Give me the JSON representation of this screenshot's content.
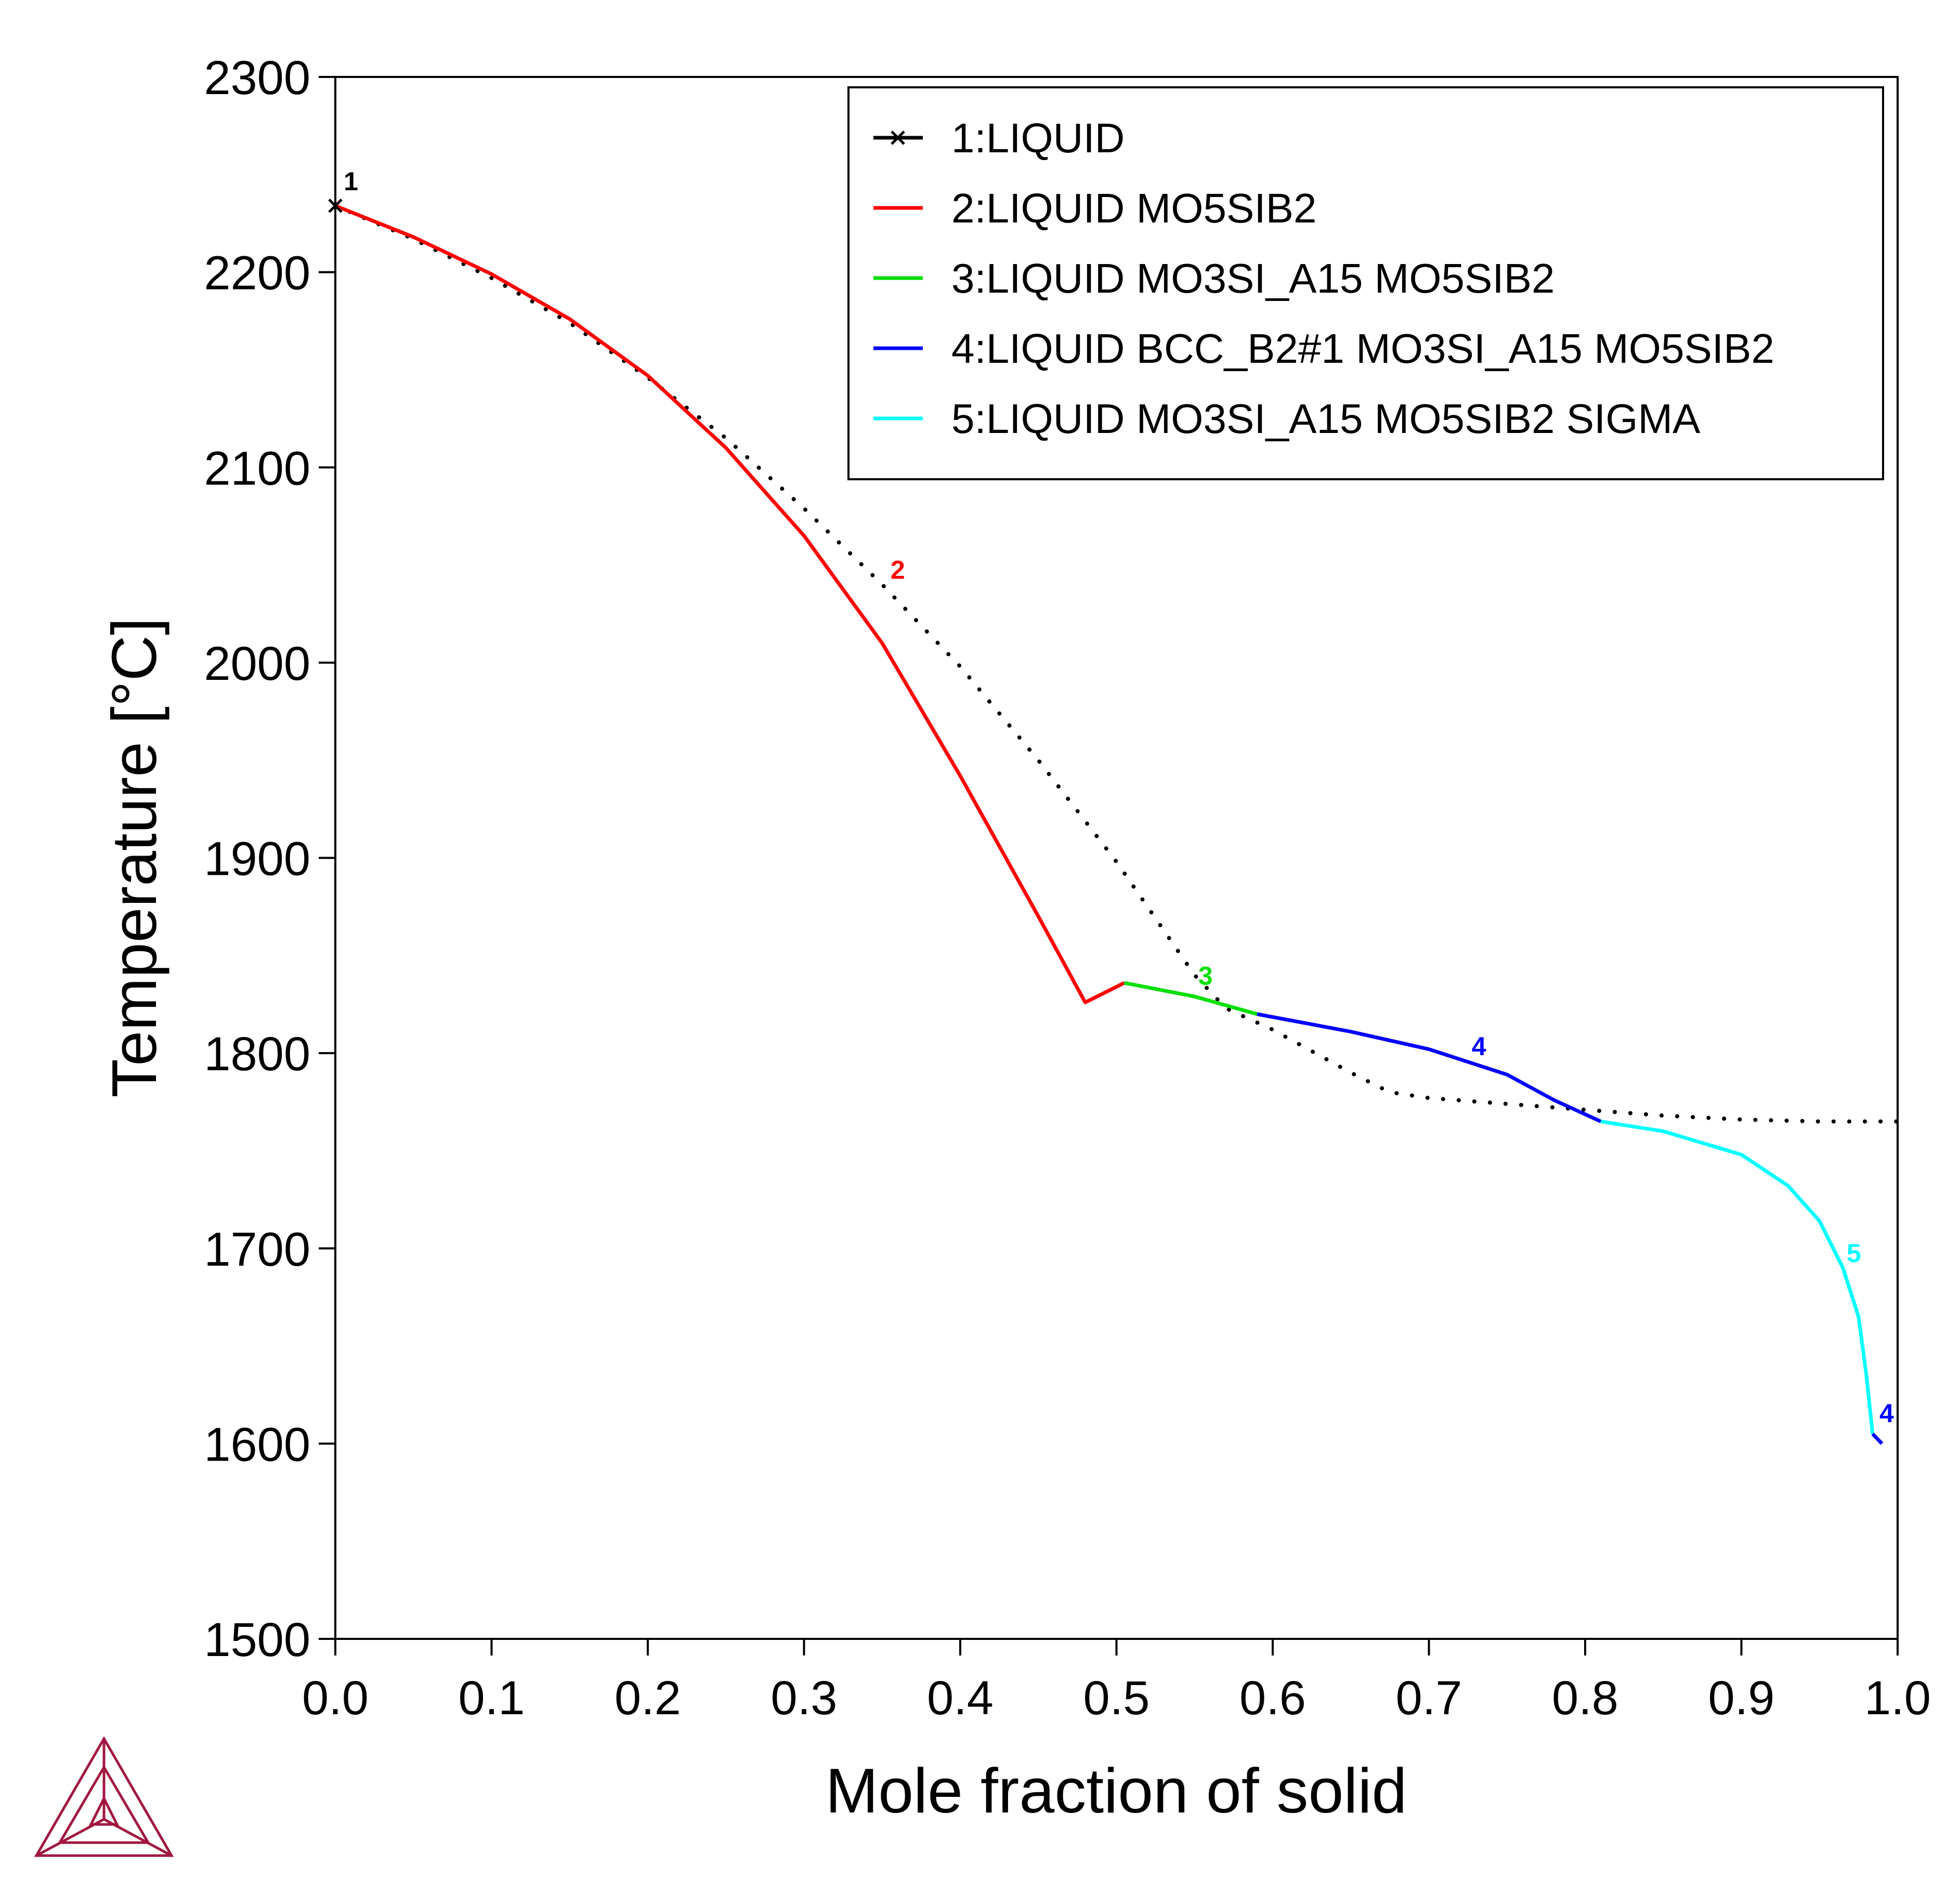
{
  "chart_data": {
    "type": "line",
    "xlabel": "Mole fraction of solid",
    "ylabel": "Temperature [°C]",
    "xlim": [
      0.0,
      1.0
    ],
    "ylim": [
      1500,
      2300
    ],
    "x_ticks": [
      "0.0",
      "0.1",
      "0.2",
      "0.3",
      "0.4",
      "0.5",
      "0.6",
      "0.7",
      "0.8",
      "0.9",
      "1.0"
    ],
    "y_ticks": [
      "1500",
      "1600",
      "1700",
      "1800",
      "1900",
      "2000",
      "2100",
      "2200",
      "2300"
    ],
    "grid": false,
    "legend_position": "top-right",
    "series": [
      {
        "name": "1:LIQUID",
        "color": "#000000",
        "style": "dotted",
        "marker": "x",
        "label": "1",
        "x": [
          0.0,
          0.05,
          0.1,
          0.15,
          0.2,
          0.25,
          0.3,
          0.35,
          0.4,
          0.45,
          0.5,
          0.55,
          0.57,
          0.6,
          0.65,
          0.675,
          0.7,
          0.75,
          0.8,
          0.85,
          0.9,
          0.95,
          1.0
        ],
        "y": [
          2234,
          2217,
          2197,
          2174,
          2146,
          2115,
          2079,
          2040,
          1998,
          1950,
          1898,
          1840,
          1823,
          1812,
          1790,
          1780,
          1777,
          1774,
          1771,
          1768,
          1766,
          1765,
          1765
        ]
      },
      {
        "name": "2:LIQUID MO5SIB2",
        "color": "#ff0000",
        "style": "solid",
        "label": "2",
        "x": [
          0.0,
          0.05,
          0.1,
          0.15,
          0.2,
          0.25,
          0.3,
          0.35,
          0.4,
          0.45,
          0.48,
          0.505
        ],
        "y": [
          2234,
          2218,
          2199,
          2176,
          2147,
          2110,
          2065,
          2010,
          1942,
          1870,
          1826,
          1836
        ]
      },
      {
        "name": "3:LIQUID MO3SI_A15 MO5SIB2",
        "color": "#00e000",
        "style": "solid",
        "label": "3",
        "x": [
          0.505,
          0.55,
          0.59
        ],
        "y": [
          1836,
          1829,
          1820
        ]
      },
      {
        "name": "4:LIQUID BCC_B2#1 MO3SI_A15 MO5SIB2",
        "color": "#0000ff",
        "style": "solid",
        "label": "4",
        "x": [
          0.59,
          0.65,
          0.7,
          0.75,
          0.78,
          0.81
        ],
        "y": [
          1820,
          1811,
          1802,
          1789,
          1776,
          1765
        ]
      },
      {
        "name": "5:LIQUID MO3SI_A15 MO5SIB2 SIGMA",
        "color": "#00ffff",
        "style": "solid",
        "label": "5",
        "x": [
          0.81,
          0.85,
          0.9,
          0.93,
          0.95,
          0.965,
          0.975,
          0.98,
          0.984
        ],
        "y": [
          1765,
          1760,
          1748,
          1732,
          1714,
          1690,
          1665,
          1635,
          1605
        ]
      },
      {
        "name": "",
        "color": "#0000ff",
        "style": "solid",
        "label": "4",
        "x": [
          0.984,
          0.99
        ],
        "y": [
          1605,
          1600
        ]
      }
    ]
  }
}
